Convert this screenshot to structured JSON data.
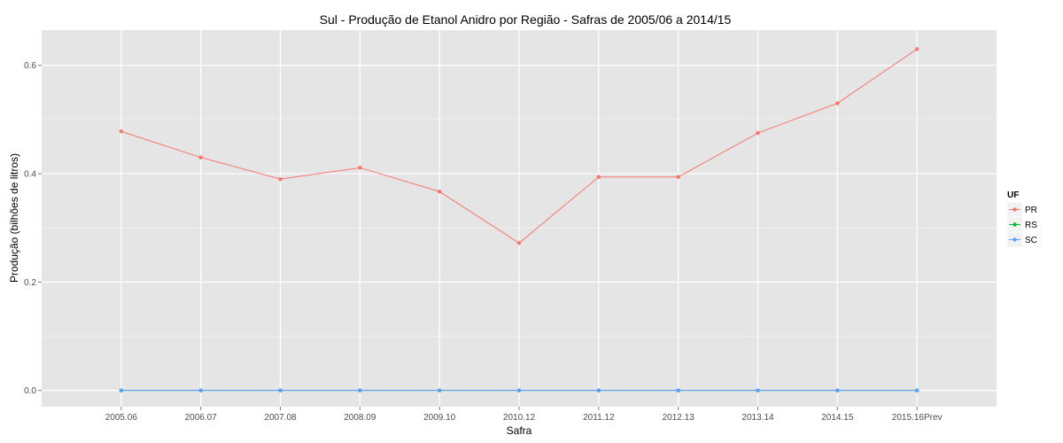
{
  "chart_data": {
    "type": "line",
    "title": "Sul  - Produção de Etanol Anidro por Região - Safras de 2005/06 a 2014/15",
    "xlabel": "Safra",
    "ylabel": "Produção (bilhões de litros)",
    "categories": [
      "2005.06",
      "2006.07",
      "2007.08",
      "2008.09",
      "2009.10",
      "2010.12",
      "2011.12",
      "2012.13",
      "2013.14",
      "2014.15",
      "2015.16Prev"
    ],
    "ylim": [
      -0.03,
      0.665
    ],
    "yticks": [
      0.0,
      0.2,
      0.4,
      0.6
    ],
    "ytick_labels": [
      "0.0",
      "0.2",
      "0.4",
      "0.6"
    ],
    "grid": true,
    "legend": {
      "title": "UF",
      "position": "right"
    },
    "series": [
      {
        "name": "PR",
        "color": "#F8766D",
        "values": [
          0.478,
          0.43,
          0.39,
          0.411,
          0.367,
          0.272,
          0.394,
          0.394,
          0.475,
          0.53,
          0.63
        ]
      },
      {
        "name": "RS",
        "color": "#00BA38",
        "values": [
          0,
          0,
          0,
          0,
          0,
          0,
          0,
          0,
          0,
          0,
          0
        ]
      },
      {
        "name": "SC",
        "color": "#619CFF",
        "values": [
          0,
          0,
          0,
          0,
          0,
          0,
          0,
          0,
          0,
          0,
          0
        ]
      }
    ]
  }
}
